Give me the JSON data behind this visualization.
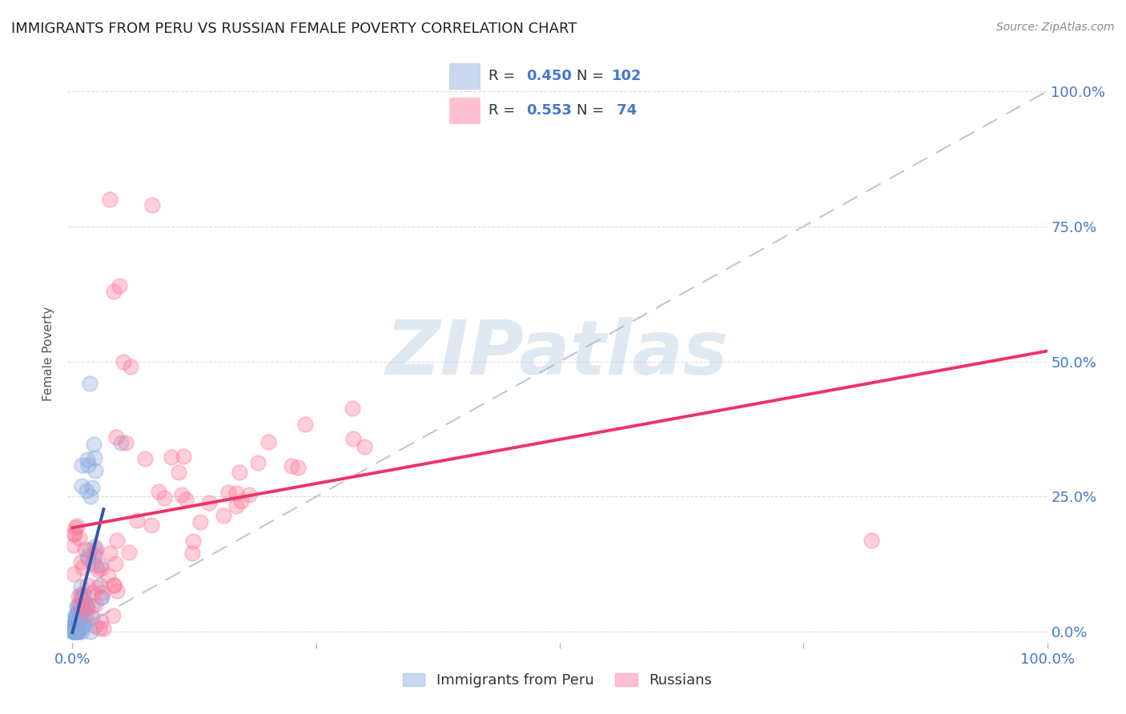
{
  "title": "IMMIGRANTS FROM PERU VS RUSSIAN FEMALE POVERTY CORRELATION CHART",
  "source": "Source: ZipAtlas.com",
  "ylabel": "Female Poverty",
  "ytick_labels": [
    "0.0%",
    "25.0%",
    "50.0%",
    "75.0%",
    "100.0%"
  ],
  "ytick_positions": [
    0.0,
    0.25,
    0.5,
    0.75,
    1.0
  ],
  "legend_label1": "Immigrants from Peru",
  "legend_label2": "Russians",
  "R1": "0.450",
  "N1": "102",
  "R2": "0.553",
  "N2": " 74",
  "color_blue": "#88AADD",
  "color_pink": "#FF7799",
  "color_blue_line": "#3355AA",
  "color_pink_line": "#EE3366",
  "color_diag": "#AABBCC",
  "watermark_text": "ZIPatlas",
  "watermark_color": "#C8D8E8",
  "background_color": "#FFFFFF",
  "grid_color": "#CCCCCC",
  "tick_color": "#4477CC",
  "title_color": "#222222",
  "source_color": "#888888",
  "xlim": [
    0.0,
    1.0
  ],
  "ylim": [
    -0.02,
    1.05
  ]
}
